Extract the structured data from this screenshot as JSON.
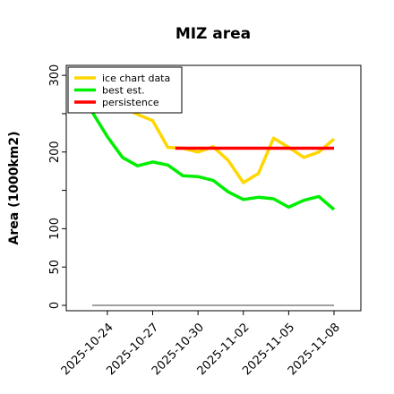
{
  "chart_data": {
    "type": "line",
    "title": "MIZ area",
    "xlabel": "",
    "ylabel": "Area (1000km2)",
    "xlim": [
      "2025-10-22",
      "2025-11-08"
    ],
    "ylim": [
      -7,
      313
    ],
    "yticks": [
      0,
      50,
      100,
      150,
      200,
      250,
      300
    ],
    "ytick_labels": [
      "0",
      "50",
      "100",
      "",
      "200",
      "",
      "300"
    ],
    "xticks": [
      "2025-10-24",
      "2025-10-27",
      "2025-10-30",
      "2025-11-02",
      "2025-11-05",
      "2025-11-08"
    ],
    "grid": false,
    "legend": "upper-left",
    "series": [
      {
        "name": "ice chart data",
        "color": "#ffd700",
        "x": [
          "2025-10-23",
          "2025-10-24",
          "2025-10-25",
          "2025-10-26",
          "2025-10-27",
          "2025-10-28",
          "2025-10-29",
          "2025-10-30",
          "2025-10-31",
          "2025-11-01",
          "2025-11-02",
          "2025-11-03",
          "2025-11-04",
          "2025-11-05",
          "2025-11-06",
          "2025-11-07",
          "2025-11-08"
        ],
        "y": [
          256,
          262,
          259,
          249,
          241,
          206,
          205,
          200,
          207,
          189,
          160,
          172,
          218,
          206,
          193,
          200,
          217
        ]
      },
      {
        "name": "best est.",
        "color": "#00ee00",
        "x": [
          "2025-10-23",
          "2025-10-24",
          "2025-10-25",
          "2025-10-26",
          "2025-10-27",
          "2025-10-28",
          "2025-10-29",
          "2025-10-30",
          "2025-10-31",
          "2025-11-01",
          "2025-11-02",
          "2025-11-03",
          "2025-11-04",
          "2025-11-05",
          "2025-11-06",
          "2025-11-07",
          "2025-11-08"
        ],
        "y": [
          252,
          220,
          193,
          182,
          187,
          183,
          169,
          168,
          163,
          148,
          138,
          141,
          139,
          128,
          137,
          142,
          125
        ]
      },
      {
        "name": "persistence",
        "color": "#ff0000",
        "x": [
          "2025-10-28.5",
          "2025-11-08"
        ],
        "y": [
          205,
          205
        ]
      }
    ],
    "baseline": {
      "color": "#808080",
      "x": [
        "2025-10-23",
        "2025-11-08"
      ],
      "y": [
        0,
        0
      ]
    }
  }
}
